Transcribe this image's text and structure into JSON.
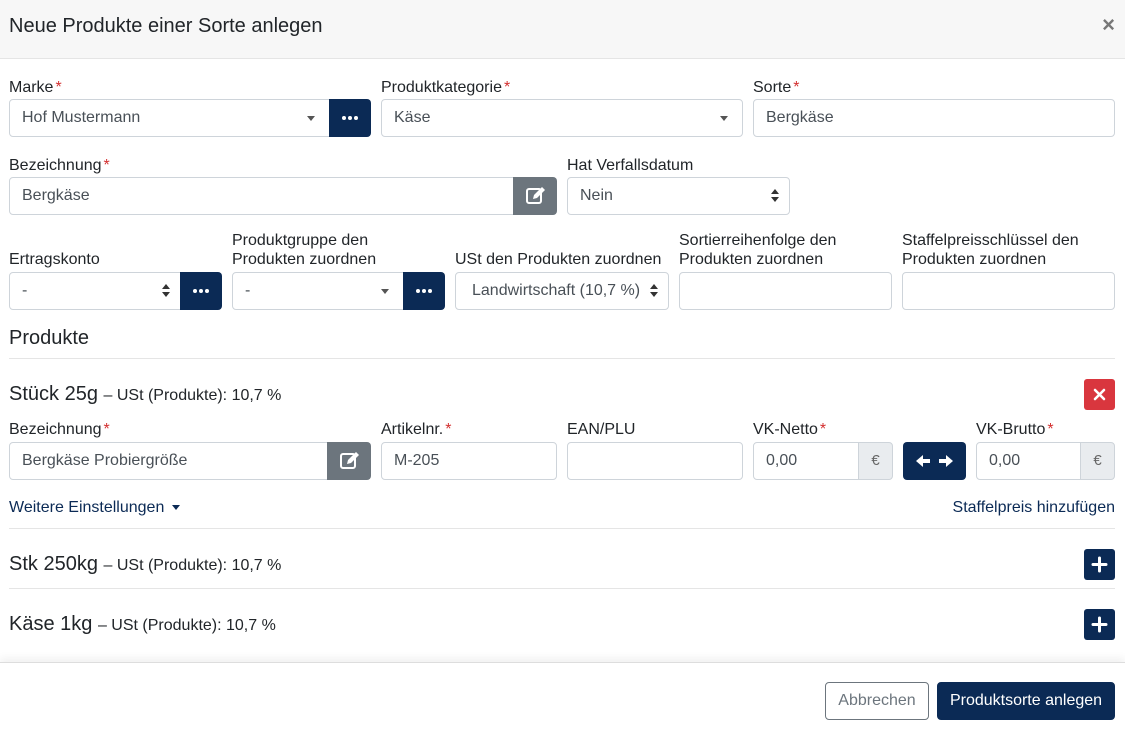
{
  "modal": {
    "title": "Neue Produkte einer Sorte anlegen",
    "close": "×"
  },
  "form": {
    "marke": {
      "label": "Marke",
      "value": "Hof Mustermann"
    },
    "kategorie": {
      "label": "Produktkategorie",
      "value": "Käse"
    },
    "sorte": {
      "label": "Sorte",
      "value": "Bergkäse"
    },
    "bezeichnung": {
      "label": "Bezeichnung",
      "value": "Bergkäse"
    },
    "verfall": {
      "label": "Hat Verfallsdatum",
      "value": "Nein"
    },
    "ertragskonto": {
      "label": "Ertragskonto",
      "value": "-"
    },
    "produktgruppe": {
      "label": "Produktgruppe den Produkten zuordnen",
      "value": "-"
    },
    "ust": {
      "label": "USt den Produkten zuordnen",
      "value": "Landwirtschaft (10,7 %)"
    },
    "sortier": {
      "label": "Sortierreihenfolge den Produkten zuordnen",
      "value": ""
    },
    "staffel": {
      "label": "Staffelpreisschlüssel den Produkten zuordnen",
      "value": ""
    },
    "required_mark": "*"
  },
  "produkte": {
    "title": "Produkte",
    "items": [
      {
        "name": "Stück 25g",
        "sub": "– USt (Produkte): 10,7 %",
        "expanded": true
      },
      {
        "name": "Stk 250kg",
        "sub": "– USt (Produkte): 10,7 %",
        "expanded": false
      },
      {
        "name": "Käse 1kg",
        "sub": "– USt (Produkte): 10,7 %",
        "expanded": false
      }
    ],
    "detail": {
      "bezeichnung": {
        "label": "Bezeichnung",
        "value": "Bergkäse Probiergröße"
      },
      "artikelnr": {
        "label": "Artikelnr.",
        "value": "M-205"
      },
      "ean": {
        "label": "EAN/PLU",
        "value": ""
      },
      "vknetto": {
        "label": "VK-Netto",
        "value": "0,00",
        "suffix": "€"
      },
      "vkbrutto": {
        "label": "VK-Brutto",
        "value": "0,00",
        "suffix": "€"
      },
      "weitere": "Weitere Einstellungen",
      "staffelpreis": "Staffelpreis hinzufügen"
    }
  },
  "footer": {
    "cancel": "Abbrechen",
    "submit": "Produktsorte anlegen"
  },
  "colors": {
    "navy": "#0b2a55",
    "danger": "#d9363e",
    "gray": "#6c757d"
  }
}
